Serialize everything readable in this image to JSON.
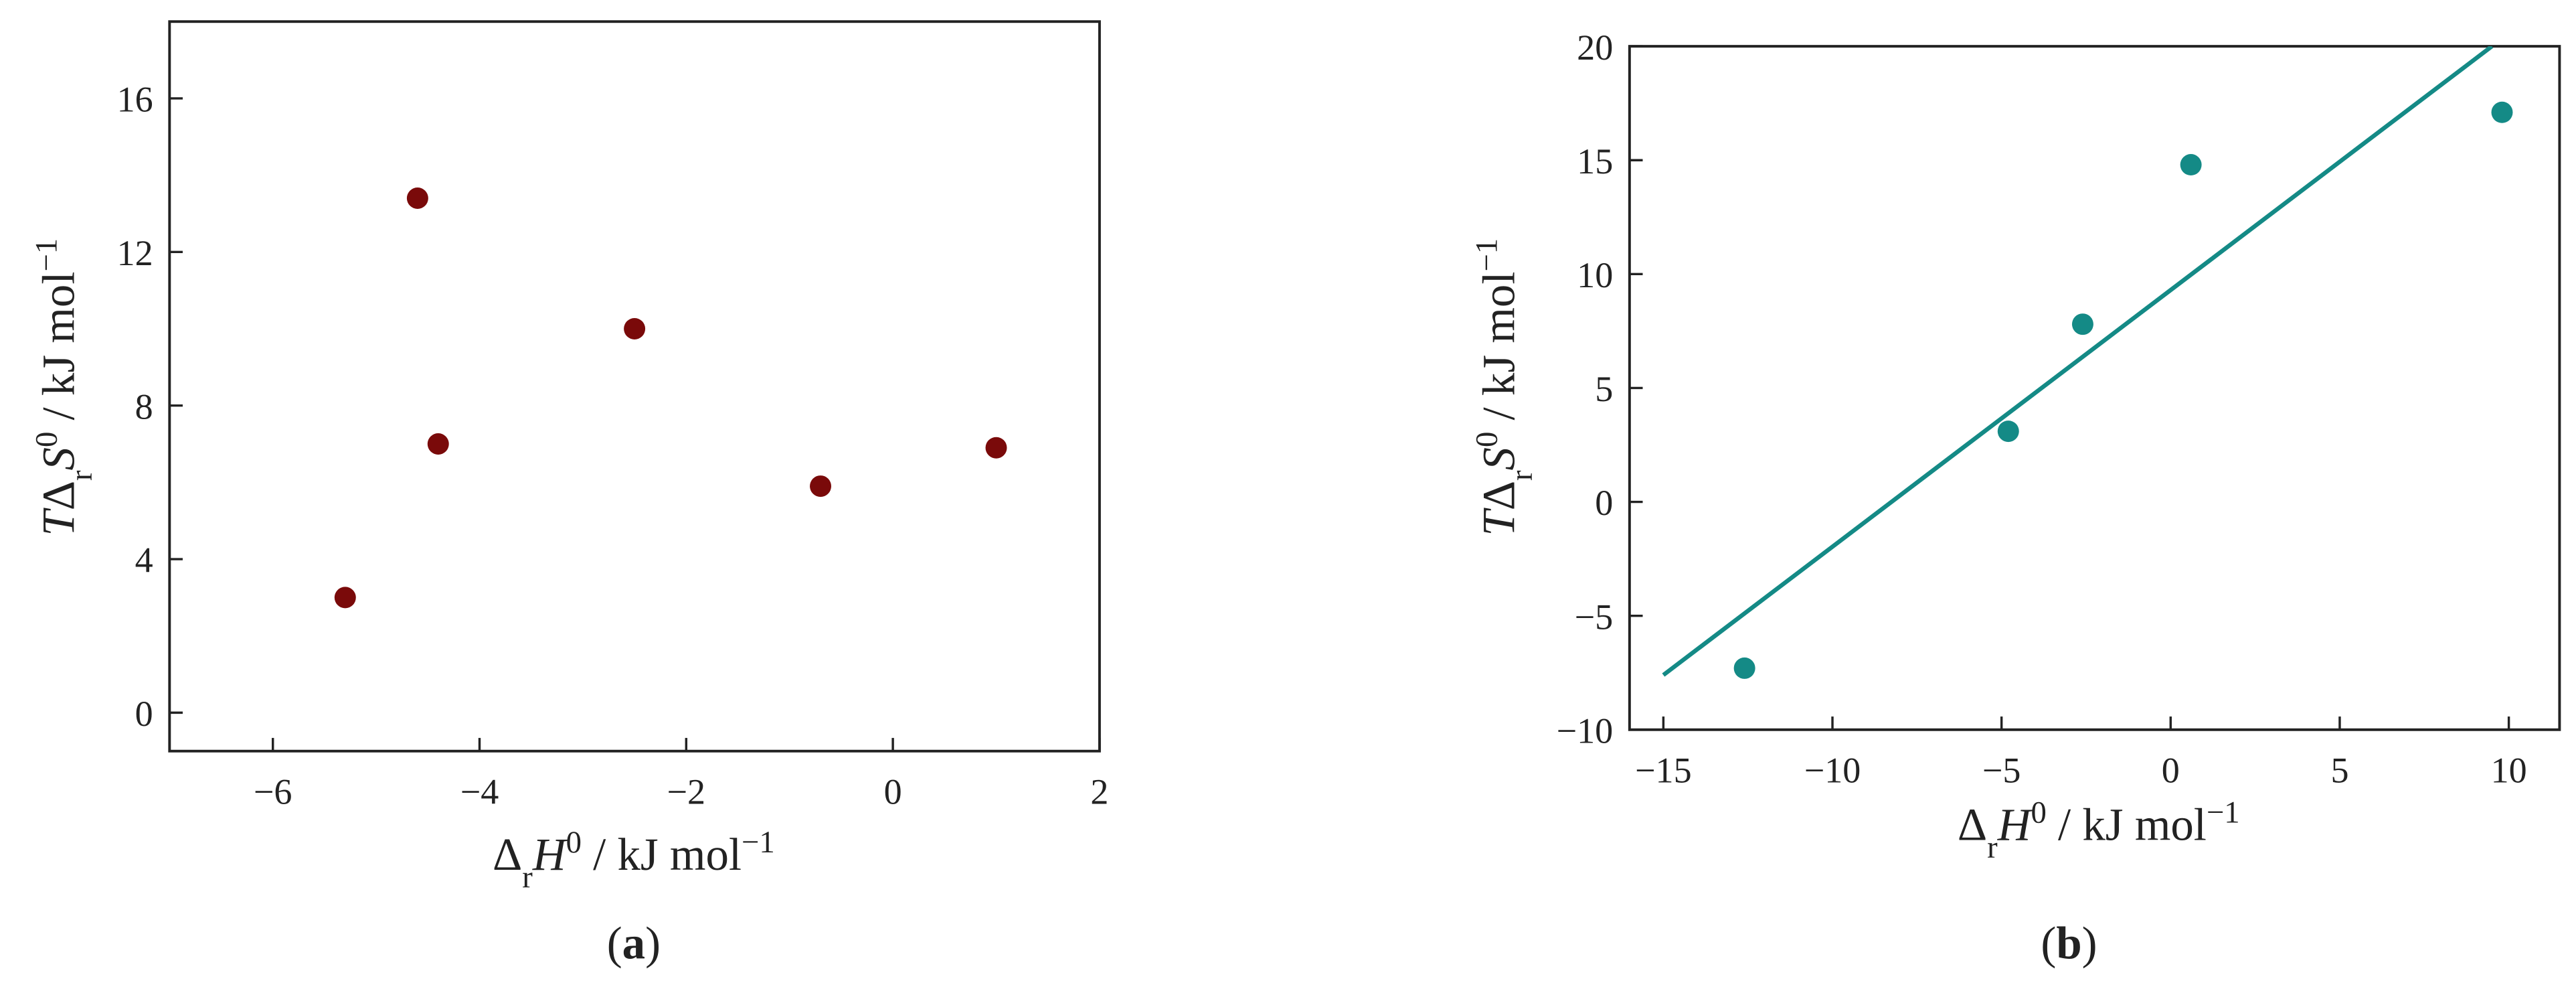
{
  "chart_data": [
    {
      "type": "scatter",
      "panel_label": [
        "(",
        "a",
        ")"
      ],
      "xlabel": [
        "Δ",
        "r",
        "H",
        "0",
        " / kJ mol",
        "−1"
      ],
      "ylabel": [
        "T",
        "Δ",
        "r",
        "S",
        "0",
        " / kJ mol",
        "−1"
      ],
      "xlim": [
        -7,
        2
      ],
      "ylim": [
        -1,
        18
      ],
      "xticks": [
        {
          "value": -6,
          "label": "−6"
        },
        {
          "value": -4,
          "label": "−4"
        },
        {
          "value": -2,
          "label": "−2"
        },
        0,
        2
      ],
      "yticks": [
        0,
        4,
        8,
        12,
        16
      ],
      "series": [
        {
          "type": "scatter",
          "color": "#7a0a0a",
          "x": [
            -5.3,
            -4.6,
            -4.4,
            -2.5,
            -0.7,
            1.0
          ],
          "values": [
            3.0,
            13.4,
            7.0,
            10.0,
            5.9,
            6.9
          ]
        }
      ]
    },
    {
      "type": "scatter",
      "panel_label": [
        "(",
        "b",
        ")"
      ],
      "xlabel": [
        "Δ",
        "r",
        "H",
        "0",
        " / kJ mol",
        "−1"
      ],
      "ylabel": [
        "T",
        "Δ",
        "r",
        "S",
        "0",
        " / kJ mol",
        "−1"
      ],
      "xlim": [
        -16,
        11.5
      ],
      "ylim": [
        -10,
        20
      ],
      "xticks": [
        {
          "value": -15,
          "label": "−15"
        },
        {
          "value": -10,
          "label": "−10"
        },
        {
          "value": -5,
          "label": "−5"
        },
        0,
        5,
        10
      ],
      "yticks": [
        {
          "value": -10,
          "label": "−10"
        },
        {
          "value": -5,
          "label": "−5"
        },
        0,
        5,
        10,
        15,
        20
      ],
      "series": [
        {
          "type": "scatter",
          "color": "#148a86",
          "x": [
            -12.6,
            -4.8,
            -2.6,
            0.6,
            9.8
          ],
          "values": [
            -7.3,
            3.1,
            7.8,
            14.8,
            17.1
          ]
        },
        {
          "type": "line",
          "color": "#148a86",
          "x": [
            -15,
            9.5
          ],
          "values": [
            -7.6,
            20
          ]
        }
      ]
    }
  ]
}
